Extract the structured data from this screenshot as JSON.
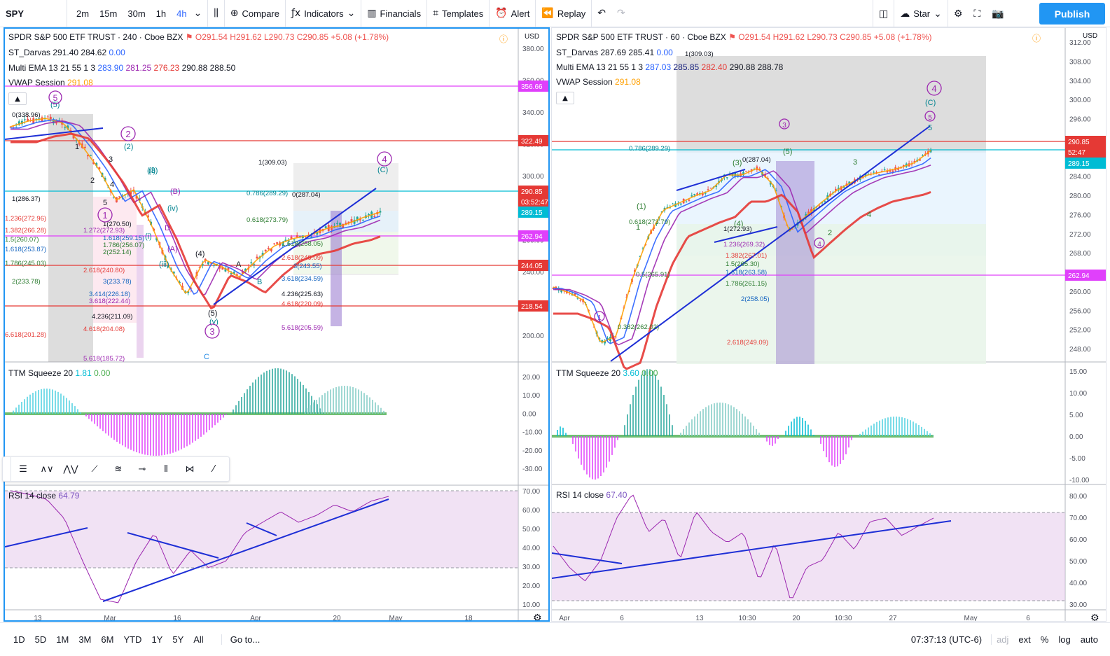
{
  "toolbar": {
    "symbol": "SPY",
    "intervals": [
      "2m",
      "15m",
      "30m",
      "1h",
      "4h"
    ],
    "active_interval": "4h",
    "compare": "Compare",
    "indicators": "Indicators",
    "financials": "Financials",
    "templates": "Templates",
    "alert": "Alert",
    "replay": "Replay",
    "layout_name": "Star",
    "publish": "Publish"
  },
  "left_chart": {
    "title": "SPDR S&P 500 ETF TRUST · 240 · Cboe BZX",
    "ohlc": {
      "o": "O291.54",
      "h": "H291.62",
      "l": "L290.73",
      "c": "C290.85",
      "chg": "+5.08 (+1.78%)"
    },
    "darvas": {
      "label": "ST_Darvas",
      "v1": "291.40",
      "v2": "284.62",
      "v3": "0.00"
    },
    "ema": {
      "label": "Multi EMA 13 21 55 1 3",
      "v1": "283.90",
      "v2": "281.25",
      "v3": "276.23",
      "v4": "290.88",
      "v5": "288.50"
    },
    "vwap": {
      "label": "VWAP Session",
      "v": "291.08"
    },
    "currency": "USD",
    "price_axis": [
      "380.00",
      "360.00",
      "340.00",
      "320.00",
      "300.00",
      "280.00",
      "260.00",
      "240.00",
      "220.00",
      "200.00"
    ],
    "price_tags": [
      {
        "v": "356.66",
        "color": "#e040fb"
      },
      {
        "v": "322.49",
        "color": "#e53935"
      },
      {
        "v": "290.85",
        "color": "#e53935"
      },
      {
        "v": "03:52:47",
        "color": "#e53935"
      },
      {
        "v": "289.15",
        "color": "#00bcd4"
      },
      {
        "v": "262.94",
        "color": "#e040fb"
      },
      {
        "v": "244.05",
        "color": "#e53935"
      },
      {
        "v": "218.54",
        "color": "#e53935"
      }
    ],
    "fib_labels": [
      "0(338.96)",
      "1(286.37)",
      "1(309.03)",
      "0.786(289.29)",
      "0.618(273.79)",
      "0(287.04)",
      "1(270.50)",
      "1.236(272.96)",
      "1.272(272.93)",
      "1.382(266.28)",
      "1.5(260.07)",
      "1.618(253.87)",
      "1.786(245.03)",
      "2(233.78)",
      "2.618(240.80)",
      "3(233.78)",
      "3.414(226.18)",
      "3.618(222.44)",
      "4.236(211.09)",
      "4.618(204.08)",
      "5.618(185.72)",
      "6.618(201.28)",
      "2.618(249.09)",
      "3(243.55)",
      "3.618(234.59)",
      "4.236(225.63)",
      "4.618(220.09)",
      "5.618(205.59)",
      "1.618(258.05)",
      "2(252.14)",
      "1.618(259.15)",
      "1.786(256.07)"
    ],
    "wave_labels": [
      "(5)",
      "1",
      "2",
      "3",
      "4",
      "5",
      "(2)",
      "(3)",
      "(4)",
      "(5)",
      "(ii)",
      "(iii)",
      "(iv)",
      "(v)",
      "(i)",
      "A",
      "B",
      "C",
      "D",
      "(A)",
      "(B)",
      "(C)"
    ],
    "circle_labels": [
      "5",
      "2",
      "1",
      "3",
      "4"
    ],
    "time_axis": [
      "13",
      "Mar",
      "16",
      "Apr",
      "20",
      "May",
      "18"
    ],
    "ttm": {
      "label": "TTM Squeeze 20",
      "v1": "1.81",
      "v2": "0.00",
      "axis": [
        "20.00",
        "10.00",
        "0.00",
        "-10.00",
        "-20.00",
        "-30.00"
      ]
    },
    "rsi": {
      "label": "RSI 14 close",
      "v": "64.79",
      "axis": [
        "70.00",
        "60.00",
        "50.00",
        "40.00",
        "30.00",
        "20.00",
        "10.00"
      ]
    }
  },
  "right_chart": {
    "title": "SPDR S&P 500 ETF TRUST · 60 · Cboe BZX",
    "ohlc": {
      "o": "O291.54",
      "h": "H291.62",
      "l": "L290.73",
      "c": "C290.85",
      "chg": "+5.08 (+1.78%)"
    },
    "darvas": {
      "label": "ST_Darvas",
      "v1": "287.69",
      "v2": "285.41",
      "v3": "0.00"
    },
    "ema": {
      "label": "Multi EMA 13 21 55 1 3",
      "v1": "287.03",
      "v2": "285.85",
      "v3": "282.40",
      "v4": "290.88",
      "v5": "288.78"
    },
    "vwap": {
      "label": "VWAP Session",
      "v": "291.08"
    },
    "currency": "USD",
    "price_axis": [
      "312.00",
      "308.00",
      "304.00",
      "300.00",
      "296.00",
      "292.00",
      "288.00",
      "284.00",
      "280.00",
      "276.00",
      "272.00",
      "268.00",
      "264.00",
      "260.00",
      "256.00",
      "252.00",
      "248.00"
    ],
    "price_tags": [
      {
        "v": "290.85",
        "color": "#e53935"
      },
      {
        "v": "52:47",
        "color": "#e53935"
      },
      {
        "v": "289.15",
        "color": "#00bcd4"
      },
      {
        "v": "262.94",
        "color": "#e040fb"
      }
    ],
    "fib_labels": [
      "1(309.03)",
      "0(287.04)",
      "0.786(289.29)",
      "0.618(273.79)",
      "0.5(265.91)",
      "0.382(262.02)",
      "1.236(269.32)",
      "1.382(267.01)",
      "1.5(265.30)",
      "1.618(263.58)",
      "1.786(261.15)",
      "2(258.05)",
      "2.618(249.09)",
      "1(272.93)"
    ],
    "wave_labels": [
      "(1)",
      "(3)",
      "(4)",
      "(5)",
      "(C)",
      "3",
      "4",
      "5",
      "2",
      "1"
    ],
    "circle_labels": [
      "1",
      "3",
      "4",
      "5",
      "4"
    ],
    "time_axis": [
      "Apr",
      "6",
      "13",
      "10:30",
      "20",
      "10:30",
      "27",
      "May",
      "6"
    ],
    "ttm": {
      "label": "TTM Squeeze 20",
      "v1": "3.60",
      "v2": "0.00",
      "axis": [
        "15.00",
        "10.00",
        "5.00",
        "0.00",
        "-5.00",
        "-10.00"
      ]
    },
    "rsi": {
      "label": "RSI 14 close",
      "v": "67.40",
      "axis": [
        "80.00",
        "70.00",
        "60.00",
        "50.00",
        "40.00",
        "30.00"
      ]
    }
  },
  "bottom": {
    "ranges": [
      "1D",
      "5D",
      "1M",
      "3M",
      "6M",
      "YTD",
      "1Y",
      "5Y",
      "All"
    ],
    "goto": "Go to...",
    "clock": "07:37:13 (UTC-6)",
    "adj": "adj",
    "ext": "ext",
    "pct": "%",
    "log": "log",
    "auto": "auto"
  },
  "colors": {
    "accent": "#2196f3",
    "up": "#26a69a",
    "down": "#ef5350",
    "ema_fast": "#2962ff",
    "ema_mid": "#9c27b0",
    "ema_slow": "#e53935",
    "magenta": "#e040fb",
    "trend": "#1e2fd6"
  }
}
